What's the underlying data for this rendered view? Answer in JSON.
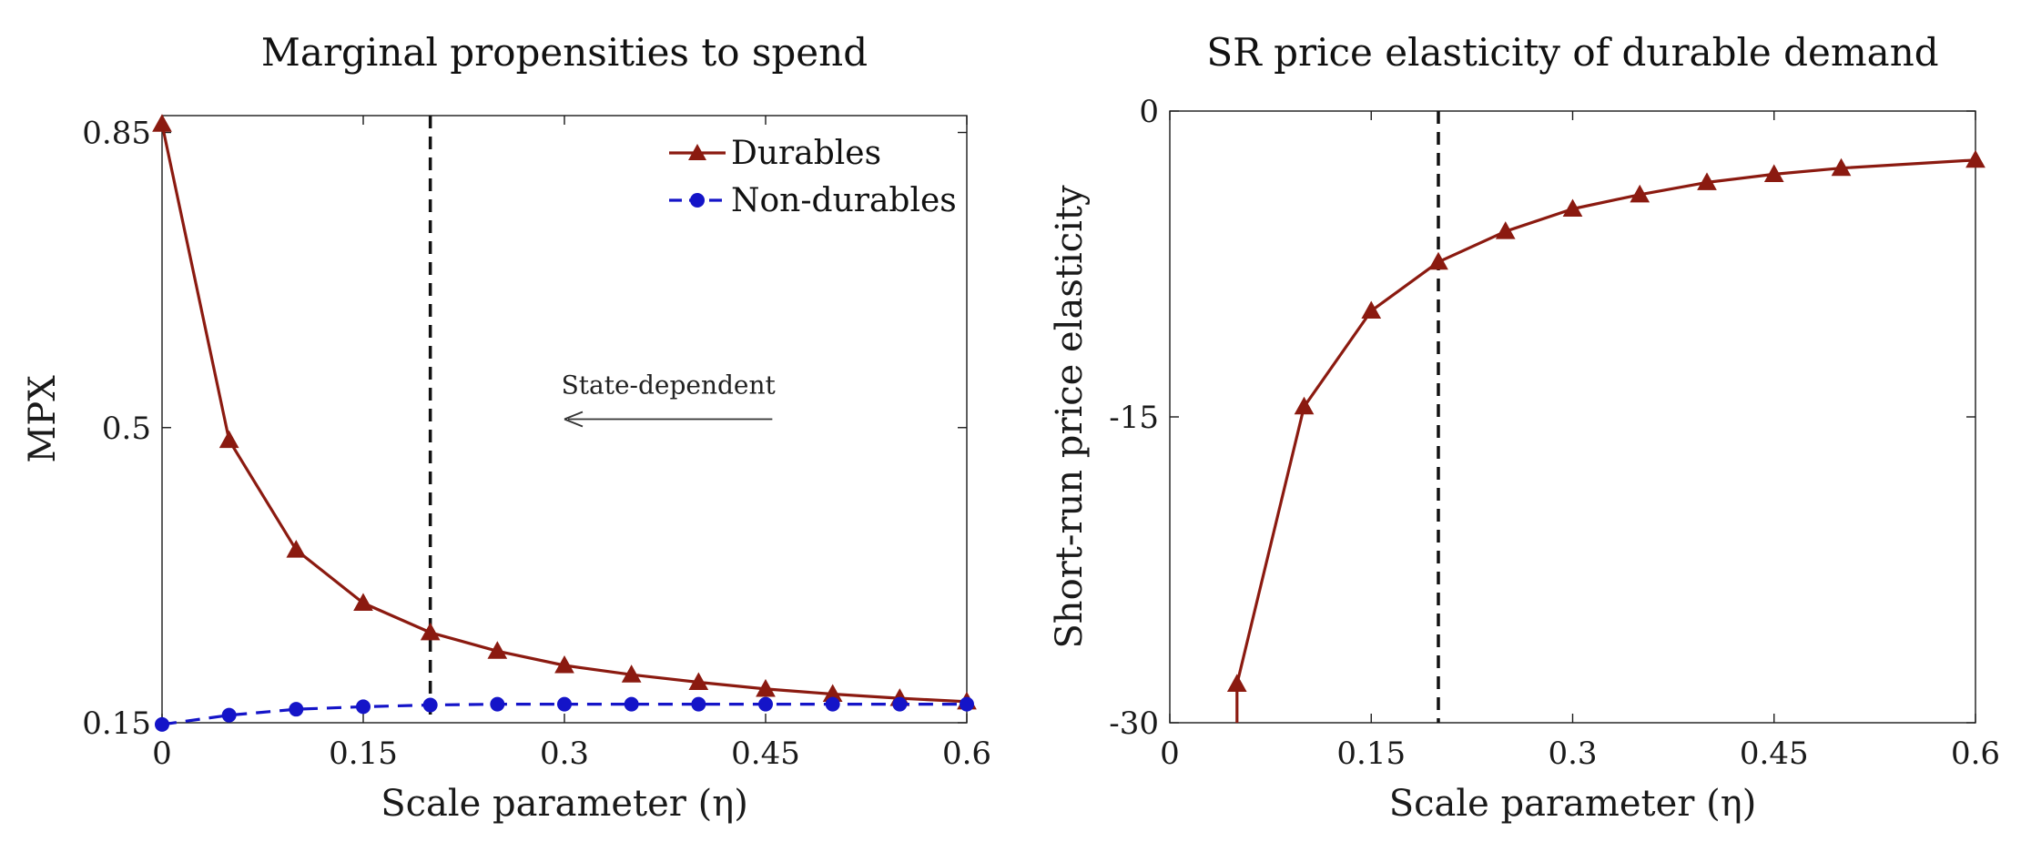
{
  "chart_data": [
    {
      "type": "line",
      "title": "Marginal propensities to spend",
      "xlabel": "Scale parameter (η)",
      "ylabel": "MPX",
      "xlim": [
        0,
        0.6
      ],
      "ylim": [
        0.15,
        0.87
      ],
      "xticks": [
        0,
        0.15,
        0.3,
        0.45,
        0.6
      ],
      "xtick_labels": [
        "0",
        "0.15",
        "0.3",
        "0.45",
        "0.6"
      ],
      "yticks": [
        0.15,
        0.5,
        0.85
      ],
      "ytick_labels": [
        "0.15",
        "0.5",
        "0.85"
      ],
      "grid": false,
      "legend_position": "top-right",
      "vline": 0.2,
      "annotation": {
        "text": "State-dependent",
        "arrow_from": 0.455,
        "arrow_to": 0.3,
        "y": 0.51
      },
      "series": [
        {
          "name": "Durables",
          "color": "#8b1a10",
          "marker": "triangle",
          "style": "solid",
          "x": [
            0,
            0.05,
            0.1,
            0.15,
            0.2,
            0.25,
            0.3,
            0.35,
            0.4,
            0.45,
            0.5,
            0.55,
            0.6
          ],
          "values": [
            0.86,
            0.485,
            0.355,
            0.292,
            0.257,
            0.235,
            0.218,
            0.207,
            0.198,
            0.19,
            0.184,
            0.179,
            0.175
          ]
        },
        {
          "name": "Non-durables",
          "color": "#1414c8",
          "marker": "circle",
          "style": "dashed",
          "x": [
            0,
            0.05,
            0.1,
            0.15,
            0.2,
            0.25,
            0.3,
            0.35,
            0.4,
            0.45,
            0.5,
            0.55,
            0.6
          ],
          "values": [
            0.148,
            0.159,
            0.166,
            0.169,
            0.171,
            0.172,
            0.172,
            0.172,
            0.172,
            0.172,
            0.172,
            0.172,
            0.172
          ]
        }
      ]
    },
    {
      "type": "line",
      "title": "SR price elasticity of durable demand",
      "xlabel": "Scale parameter (η)",
      "ylabel": "Short-run price elasticity",
      "xlim": [
        0,
        0.6
      ],
      "ylim": [
        -30,
        0
      ],
      "xticks": [
        0,
        0.15,
        0.3,
        0.45,
        0.6
      ],
      "xtick_labels": [
        "0",
        "0.15",
        "0.3",
        "0.45",
        "0.6"
      ],
      "yticks": [
        -30,
        -15,
        0
      ],
      "ytick_labels": [
        "-30",
        "-15",
        "0"
      ],
      "grid": false,
      "vline": 0.2,
      "series": [
        {
          "color": "#8b1a10",
          "marker": "triangle",
          "style": "solid",
          "x": [
            0.05,
            0.1,
            0.15,
            0.2,
            0.25,
            0.3,
            0.35,
            0.4,
            0.45,
            0.5,
            0.6
          ],
          "values": [
            -28.1,
            -14.5,
            -9.8,
            -7.4,
            -5.9,
            -4.8,
            -4.1,
            -3.5,
            -3.1,
            -2.8,
            -2.4
          ],
          "tail_to_axis": true
        }
      ]
    }
  ]
}
